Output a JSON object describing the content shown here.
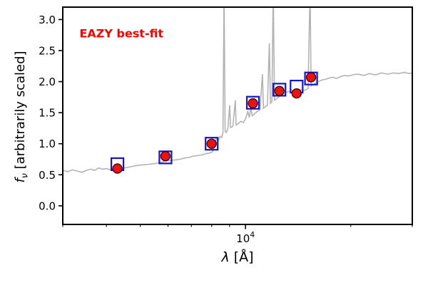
{
  "labels": {
    "ylabel_f": "f",
    "ylabel_sub": "ν",
    "ylabel_rest": " [arbitrarily scaled]",
    "xlabel_lambda": "λ",
    "xlabel_rest": " [Å]"
  },
  "chart_data": {
    "type": "line",
    "title": "",
    "xlabel": "λ [Å]",
    "ylabel": "f_ν [arbitrarily scaled]",
    "xscale": "log",
    "xlim": [
      3000,
      30000
    ],
    "ylim": [
      -0.3,
      3.2
    ],
    "grid": false,
    "legend": "none",
    "annotation": {
      "text": "EAZY best-fit",
      "color": "#ff0000",
      "x": 3350,
      "y": 2.78
    },
    "axis_color": "#000000",
    "yticks": [
      0.0,
      0.5,
      1.0,
      1.5,
      2.0,
      2.5,
      3.0
    ],
    "ytick_labels": [
      "0.0",
      "0.5",
      "1.0",
      "1.5",
      "2.0",
      "2.5",
      "3.0"
    ],
    "xticks_major": [
      10000
    ],
    "xtick_major_label": {
      "base": "10",
      "exp": "4"
    },
    "xticks_minor": [
      3000,
      4000,
      5000,
      6000,
      7000,
      8000,
      9000,
      20000,
      30000
    ],
    "series": [
      {
        "name": "model-spectrum",
        "type": "line",
        "color": "#b3b3b3",
        "linewidth": 1.6,
        "points": [
          [
            3000,
            0.57
          ],
          [
            3100,
            0.55
          ],
          [
            3200,
            0.58
          ],
          [
            3300,
            0.56
          ],
          [
            3400,
            0.54
          ],
          [
            3500,
            0.57
          ],
          [
            3600,
            0.59
          ],
          [
            3700,
            0.57
          ],
          [
            3800,
            0.61
          ],
          [
            3900,
            0.59
          ],
          [
            4000,
            0.6
          ],
          [
            4100,
            0.58
          ],
          [
            4200,
            0.61
          ],
          [
            4300,
            0.62
          ],
          [
            4500,
            0.61
          ],
          [
            4700,
            0.63
          ],
          [
            4900,
            0.65
          ],
          [
            5100,
            0.66
          ],
          [
            5300,
            0.67
          ],
          [
            5500,
            0.68
          ],
          [
            5700,
            0.7
          ],
          [
            5900,
            0.72
          ],
          [
            6100,
            0.73
          ],
          [
            6300,
            0.74
          ],
          [
            6500,
            0.75
          ],
          [
            6700,
            0.77
          ],
          [
            6900,
            0.78
          ],
          [
            7100,
            0.8
          ],
          [
            7300,
            0.81
          ],
          [
            7500,
            0.82
          ],
          [
            7700,
            0.84
          ],
          [
            7900,
            0.85
          ],
          [
            8000,
            0.86
          ],
          [
            8100,
            0.9
          ],
          [
            8150,
            1.0
          ],
          [
            8250,
            1.08
          ],
          [
            8350,
            1.04
          ],
          [
            8450,
            1.12
          ],
          [
            8550,
            1.1
          ],
          [
            8620,
            1.18
          ],
          [
            8680,
            3.5
          ],
          [
            8740,
            1.2
          ],
          [
            8800,
            1.18
          ],
          [
            8900,
            1.24
          ],
          [
            9010,
            1.62
          ],
          [
            9060,
            1.26
          ],
          [
            9200,
            1.28
          ],
          [
            9350,
            1.7
          ],
          [
            9400,
            1.3
          ],
          [
            9550,
            1.33
          ],
          [
            9700,
            1.36
          ],
          [
            9850,
            1.34
          ],
          [
            10000,
            1.4
          ],
          [
            10150,
            1.52
          ],
          [
            10250,
            1.42
          ],
          [
            10350,
            1.58
          ],
          [
            10450,
            1.45
          ],
          [
            10600,
            1.48
          ],
          [
            10800,
            1.52
          ],
          [
            11000,
            1.55
          ],
          [
            11180,
            2.12
          ],
          [
            11250,
            1.57
          ],
          [
            11400,
            1.6
          ],
          [
            11550,
            1.62
          ],
          [
            11700,
            2.62
          ],
          [
            11780,
            1.65
          ],
          [
            11900,
            1.68
          ],
          [
            12000,
            3.5
          ],
          [
            12100,
            1.7
          ],
          [
            12300,
            1.73
          ],
          [
            12500,
            1.76
          ],
          [
            12700,
            1.79
          ],
          [
            12900,
            1.81
          ],
          [
            13100,
            1.83
          ],
          [
            13300,
            1.84
          ],
          [
            13500,
            1.85
          ],
          [
            13700,
            1.86
          ],
          [
            13900,
            1.87
          ],
          [
            14100,
            1.88
          ],
          [
            14300,
            1.87
          ],
          [
            14500,
            1.86
          ],
          [
            14700,
            1.86
          ],
          [
            14900,
            1.87
          ],
          [
            15100,
            1.89
          ],
          [
            15300,
            3.5
          ],
          [
            15400,
            1.93
          ],
          [
            15600,
            1.95
          ],
          [
            15800,
            1.97
          ],
          [
            16000,
            1.99
          ],
          [
            16300,
            2.01
          ],
          [
            16600,
            2.03
          ],
          [
            17000,
            2.04
          ],
          [
            17400,
            2.06
          ],
          [
            17800,
            2.07
          ],
          [
            18200,
            2.05
          ],
          [
            18700,
            2.08
          ],
          [
            19200,
            2.1
          ],
          [
            19700,
            2.09
          ],
          [
            20300,
            2.11
          ],
          [
            21000,
            2.12
          ],
          [
            21800,
            2.1
          ],
          [
            22600,
            2.13
          ],
          [
            23500,
            2.11
          ],
          [
            24500,
            2.14
          ],
          [
            25500,
            2.12
          ],
          [
            26500,
            2.14
          ],
          [
            27500,
            2.13
          ],
          [
            28500,
            2.15
          ],
          [
            29300,
            2.13
          ],
          [
            30000,
            2.14
          ]
        ]
      },
      {
        "name": "model-photometry",
        "type": "scatter-square",
        "edge_color": "#1414cc",
        "edge_width": 2.2,
        "size": 17,
        "x": [
          4300,
          5900,
          8000,
          10500,
          12500,
          14000,
          15400
        ],
        "values": [
          0.67,
          0.78,
          1.0,
          1.66,
          1.87,
          1.92,
          2.05
        ]
      },
      {
        "name": "observed-photometry",
        "type": "scatter-circle",
        "fill_color": "#ee1111",
        "edge_color": "#330000",
        "edge_width": 1.3,
        "radius": 6.5,
        "x": [
          4300,
          5900,
          8000,
          10500,
          12500,
          14000,
          15400
        ],
        "values": [
          0.6,
          0.8,
          1.0,
          1.65,
          1.85,
          1.81,
          2.07
        ]
      }
    ]
  }
}
